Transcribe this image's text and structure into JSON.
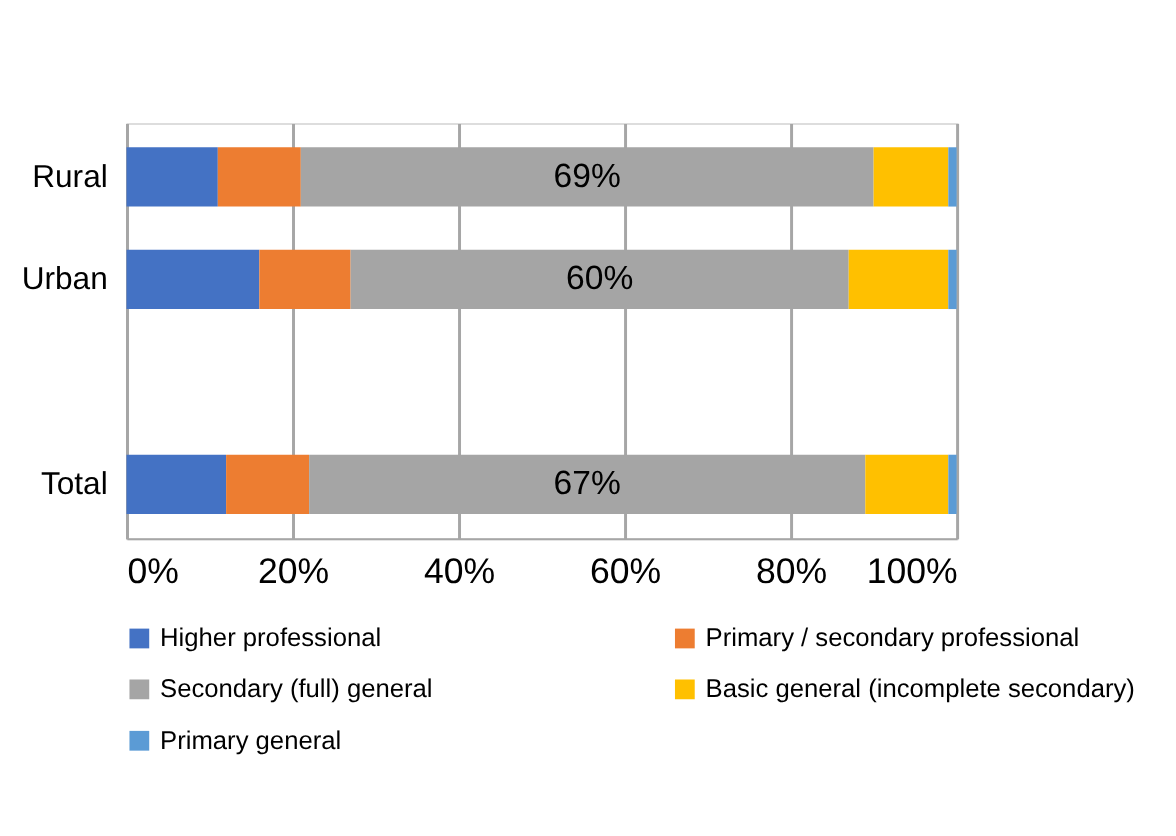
{
  "chart_data": {
    "type": "bar",
    "orientation": "horizontal",
    "stacked": true,
    "categories": [
      "Rural",
      "Urban",
      null,
      "Total"
    ],
    "series": [
      {
        "name": "Higher professional",
        "color": "#4472c4",
        "values": [
          11,
          16,
          null,
          12
        ]
      },
      {
        "name": "Primary / secondary professional",
        "color": "#ed7d31",
        "values": [
          10,
          11,
          null,
          10
        ]
      },
      {
        "name": "Secondary (full) general",
        "color": "#a5a5a5",
        "values": [
          69,
          60,
          null,
          67
        ],
        "value_labels": [
          "69%",
          "60%",
          null,
          "67%"
        ]
      },
      {
        "name": "Basic general (incomplete secondary)",
        "color": "#ffc000",
        "values": [
          9,
          12,
          null,
          10
        ]
      },
      {
        "name": "Primary general",
        "color": "#5b9bd5",
        "values": [
          1,
          1,
          null,
          1
        ]
      }
    ],
    "xlim": [
      0,
      100
    ],
    "xticks": [
      {
        "value": 0,
        "label": "0%"
      },
      {
        "value": 20,
        "label": "20%"
      },
      {
        "value": 40,
        "label": "40%"
      },
      {
        "value": 60,
        "label": "60%"
      },
      {
        "value": 80,
        "label": "80%"
      },
      {
        "value": 100,
        "label": "100%"
      }
    ],
    "grid": "x",
    "legend": "bottom"
  }
}
